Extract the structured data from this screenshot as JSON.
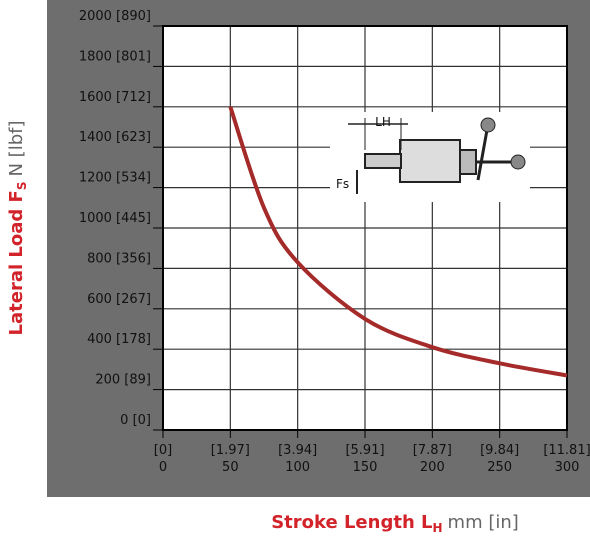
{
  "chart_data": {
    "type": "line",
    "x_label": {
      "main": "Stroke Length L",
      "sub": "H",
      "unit": "mm [in]"
    },
    "y_label": {
      "main": "Lateral Load F",
      "sub": "S",
      "unit": "N [lbf]"
    },
    "x": [
      50,
      75,
      100,
      150,
      200,
      250,
      300
    ],
    "series": [
      {
        "color": "#a52a2a",
        "values": [
          1600,
          1100,
          830,
          550,
          410,
          330,
          270
        ]
      }
    ],
    "xlim": [
      0,
      300
    ],
    "ylim": [
      0,
      2000
    ],
    "xticks": [
      0,
      50,
      100,
      150,
      200,
      250,
      300
    ],
    "xtick_inch_labels": [
      "[0]",
      "[1.97]",
      "[3.94]",
      "[5.91]",
      "[7.87]",
      "[9.84]",
      "[11.81]"
    ],
    "yticks": [
      {
        "value": 0,
        "label": "0 [0]"
      },
      {
        "value": 200,
        "label": "200 [89]"
      },
      {
        "value": 400,
        "label": "400 [178]"
      },
      {
        "value": 600,
        "label": "600 [267]"
      },
      {
        "value": 800,
        "label": "800 [356]"
      },
      {
        "value": 1000,
        "label": "1000 [445]"
      },
      {
        "value": 1200,
        "label": "1200 [534]"
      },
      {
        "value": 1400,
        "label": "1400 [623]"
      },
      {
        "value": 1600,
        "label": "1600 [712]"
      },
      {
        "value": 1800,
        "label": "1800 [801]"
      },
      {
        "value": 2000,
        "label": "2000 [890]"
      }
    ],
    "grid": true,
    "inset": {
      "stroke_label": "LH",
      "force_label": "Fs"
    }
  }
}
